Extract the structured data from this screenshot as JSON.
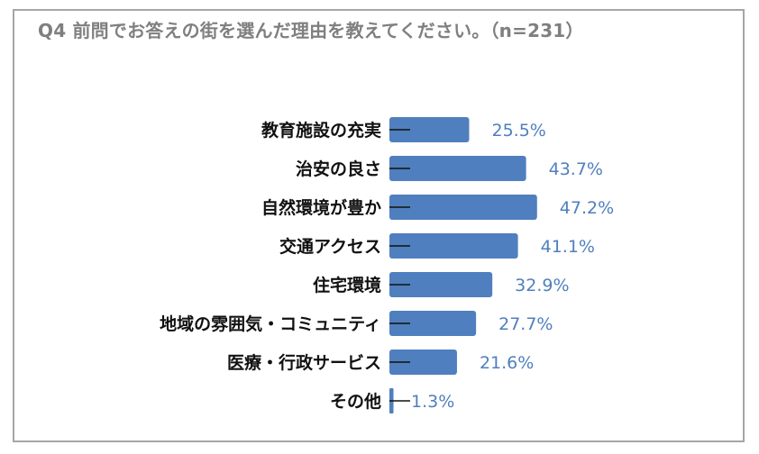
{
  "chart_data": {
    "type": "bar",
    "orientation": "horizontal",
    "title": "Q4 前問でお答えの街を選んだ理由を教えてください。（n=231）",
    "categories": [
      "教育施設の充実",
      "治安の良さ",
      "自然環境が豊か",
      "交通アクセス",
      "住宅環境",
      "地域の雰囲気・コミュニティ",
      "医療・行政サービス",
      "その他"
    ],
    "values": [
      25.5,
      43.7,
      47.2,
      41.1,
      32.9,
      27.7,
      21.6,
      1.3
    ],
    "value_labels": [
      "25.5%",
      "43.7%",
      "47.2%",
      "41.1%",
      "32.9%",
      "27.7%",
      "21.6%",
      "1.3%"
    ],
    "unit": "%",
    "bar_color": "#4f7fbe",
    "label_color": "#4f7fbe",
    "grid": false,
    "legend": "none"
  }
}
